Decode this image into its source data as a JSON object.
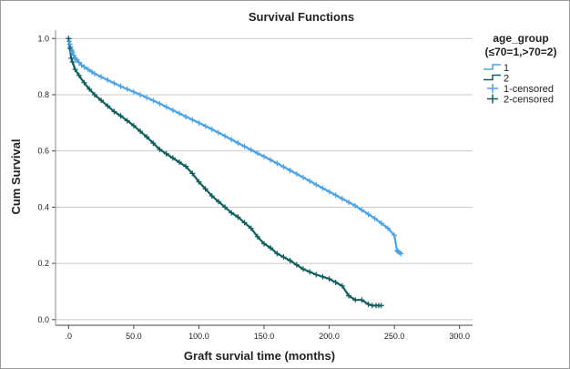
{
  "chart_data": {
    "type": "line",
    "title": "Survival Functions",
    "xlabel": "Graft survial time (months)",
    "ylabel": "Cum Survival",
    "xlim": [
      -10,
      310
    ],
    "ylim": [
      -0.02,
      1.03
    ],
    "x_ticks": [
      0,
      50,
      100,
      150,
      200,
      250,
      300
    ],
    "x_tick_labels": [
      ".0",
      "50.0",
      "100.0",
      "150.0",
      "200.0",
      "250.0",
      "300.0"
    ],
    "y_ticks": [
      0,
      0.2,
      0.4,
      0.6,
      0.8,
      1.0
    ],
    "y_tick_labels": [
      "0.0",
      "0.2",
      "0.4",
      "0.6",
      "0.8",
      "1.0"
    ],
    "grid": "horizontal",
    "legend": {
      "title_line1": "age_group",
      "title_line2": "(≤70=1,>70=2)",
      "placement": "right",
      "entries": [
        {
          "label": "1",
          "kind": "line",
          "series": 0
        },
        {
          "label": "2",
          "kind": "line",
          "series": 1
        },
        {
          "label": "1-censored",
          "kind": "censor",
          "series": 0
        },
        {
          "label": "2-censored",
          "kind": "censor",
          "series": 1
        }
      ]
    },
    "series": [
      {
        "name": "1",
        "color": "#4aa3e8",
        "x": [
          0,
          2,
          5,
          10,
          15,
          20,
          30,
          40,
          50,
          60,
          70,
          80,
          90,
          100,
          110,
          120,
          130,
          140,
          150,
          160,
          170,
          180,
          190,
          200,
          210,
          220,
          230,
          235,
          240,
          245,
          250,
          252,
          255
        ],
        "y": [
          1.0,
          0.96,
          0.93,
          0.905,
          0.89,
          0.875,
          0.852,
          0.83,
          0.81,
          0.79,
          0.768,
          0.745,
          0.722,
          0.7,
          0.677,
          0.653,
          0.628,
          0.604,
          0.58,
          0.556,
          0.531,
          0.506,
          0.48,
          0.455,
          0.43,
          0.405,
          0.375,
          0.36,
          0.343,
          0.325,
          0.3,
          0.245,
          0.235
        ],
        "censored_x": [
          0,
          0.5,
          1,
          1.5,
          2,
          2.5,
          3,
          4,
          5,
          6,
          8,
          10,
          12,
          15,
          18,
          20,
          25,
          30,
          35,
          40,
          45,
          50,
          55,
          60,
          65,
          70,
          75,
          80,
          85,
          90,
          95,
          100,
          105,
          110,
          115,
          120,
          125,
          130,
          135,
          140,
          145,
          150,
          155,
          160,
          165,
          170,
          175,
          180,
          185,
          190,
          195,
          200,
          205,
          210,
          215,
          220,
          225,
          230,
          235,
          240,
          245,
          250,
          252,
          253,
          254,
          255
        ]
      },
      {
        "name": "2",
        "color": "#0f5f5f",
        "x": [
          0,
          2,
          5,
          10,
          15,
          20,
          25,
          30,
          35,
          40,
          50,
          60,
          70,
          80,
          90,
          95,
          100,
          105,
          110,
          115,
          120,
          125,
          130,
          135,
          140,
          145,
          150,
          155,
          160,
          170,
          180,
          190,
          200,
          210,
          215,
          220,
          225,
          230,
          233,
          238,
          240
        ],
        "y": [
          1.0,
          0.93,
          0.89,
          0.855,
          0.825,
          0.8,
          0.78,
          0.76,
          0.74,
          0.725,
          0.69,
          0.65,
          0.605,
          0.575,
          0.545,
          0.52,
          0.49,
          0.465,
          0.44,
          0.42,
          0.4,
          0.38,
          0.365,
          0.345,
          0.325,
          0.295,
          0.27,
          0.255,
          0.235,
          0.21,
          0.18,
          0.16,
          0.145,
          0.12,
          0.085,
          0.07,
          0.07,
          0.055,
          0.05,
          0.05,
          0.05
        ],
        "censored_x": [
          0,
          1,
          2,
          3,
          5,
          8,
          12,
          16,
          20,
          25,
          30,
          35,
          40,
          45,
          50,
          55,
          60,
          65,
          70,
          75,
          80,
          85,
          90,
          95,
          100,
          105,
          110,
          115,
          120,
          125,
          130,
          135,
          140,
          145,
          150,
          155,
          160,
          165,
          170,
          175,
          180,
          185,
          190,
          195,
          200,
          205,
          210,
          215,
          220,
          225,
          230,
          233,
          236,
          238,
          240
        ]
      }
    ]
  }
}
